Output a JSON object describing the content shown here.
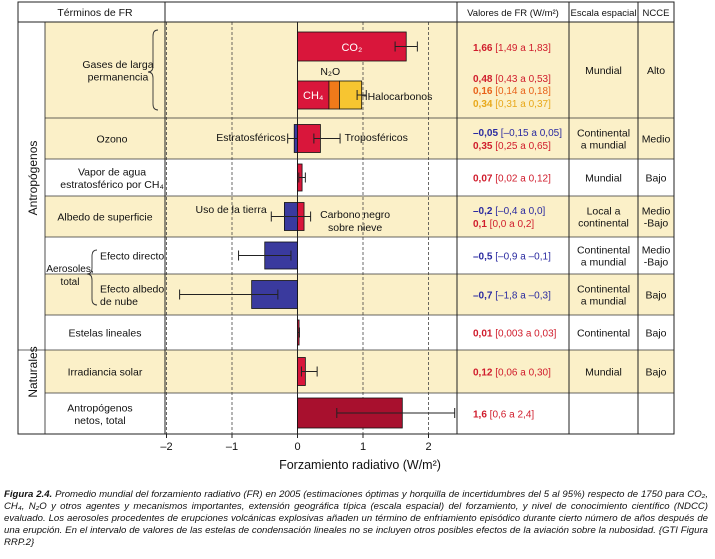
{
  "colors": {
    "red": "#d9163b",
    "blue": "#3a3a9e",
    "darkred": "#a8102e",
    "orange": "#f07a1a",
    "yellow": "#f7c531",
    "band": "#fbf0c8",
    "border": "#222222",
    "valred": "#d01c2c",
    "valblue": "#2a2aa0",
    "valorange": "#e8621a",
    "valyellow": "#e8a81a"
  },
  "chart_data": {
    "type": "bar",
    "orientation": "horizontal",
    "title": "",
    "xlabel": "Forzamiento radiativo (W/m²)",
    "xlim": [
      -2.0,
      2.45
    ],
    "xticks": [
      "–2",
      "–1",
      "0",
      "1",
      "2"
    ],
    "xtick_values": [
      -2,
      -1,
      0,
      1,
      2
    ],
    "headers": {
      "terms": "Términos de FR",
      "values": "Valores de FR (W/m²)",
      "scale": "Escala espacial",
      "ncce": "NCCE"
    },
    "groups": {
      "anthro": "Antropógenos",
      "natural": "Naturales"
    },
    "rows": [
      {
        "term": [
          "Gases de larga",
          "permanencia"
        ],
        "scale": [
          "Mundial"
        ],
        "ncce": [
          "Alto"
        ],
        "shaded": true,
        "values": [
          {
            "best": "1,66",
            "range": "[1,49 a 1,83]",
            "color": "red"
          },
          {
            "best": "0,48",
            "range": "[0,43 a 0,53]",
            "color": "red"
          },
          {
            "best": "0,16",
            "range": "[0,14 a 0,18]",
            "color": "orange"
          },
          {
            "best": "0,34",
            "range": "[0,31 a 0,37]",
            "color": "yellow"
          }
        ]
      },
      {
        "term": [
          "Ozono"
        ],
        "scale": [
          "Continental",
          "a mundial"
        ],
        "ncce": [
          "Medio"
        ],
        "shaded": true,
        "values": [
          {
            "best": "–0,05",
            "range": "[–0,15 a 0,05]",
            "color": "blue"
          },
          {
            "best": "0,35",
            "range": "[0,25 a 0,65]",
            "color": "red"
          }
        ]
      },
      {
        "term": [
          "Vapor de agua",
          "estratosférico por CH₄"
        ],
        "scale": [
          "Mundial"
        ],
        "ncce": [
          "Bajo"
        ],
        "shaded": false,
        "values": [
          {
            "best": "0,07",
            "range": "[0,02 a 0,12]",
            "color": "red"
          }
        ]
      },
      {
        "term": [
          "Albedo de superficie"
        ],
        "scale": [
          "Local a",
          "continental"
        ],
        "ncce": [
          "Medio",
          "-Bajo"
        ],
        "shaded": true,
        "values": [
          {
            "best": "–0,2",
            "range": "[–0,4 a 0,0]",
            "color": "blue"
          },
          {
            "best": "0,1",
            "range": "[0,0 a 0,2]",
            "color": "red"
          }
        ]
      },
      {
        "term": [
          "Efecto directo"
        ],
        "scale": [
          "Continental",
          "a mundial"
        ],
        "ncce": [
          "Medio",
          "-Bajo"
        ],
        "shaded": false,
        "values": [
          {
            "best": "–0,5",
            "range": "[–0,9 a –0,1]",
            "color": "blue"
          }
        ]
      },
      {
        "term": [
          "Efecto albedo",
          "de nube"
        ],
        "scale": [
          "Continental",
          "a mundial"
        ],
        "ncce": [
          "Bajo"
        ],
        "shaded": true,
        "values": [
          {
            "best": "–0,7",
            "range": "[–1,8 a –0,3]",
            "color": "blue"
          }
        ]
      },
      {
        "term": [
          "Estelas lineales"
        ],
        "scale": [
          "Continental"
        ],
        "ncce": [
          "Bajo"
        ],
        "shaded": false,
        "values": [
          {
            "best": "0,01",
            "range": "[0,003 a 0,03]",
            "color": "red"
          }
        ]
      },
      {
        "term": [
          "Irradiancia solar"
        ],
        "scale": [
          "Mundial"
        ],
        "ncce": [
          "Bajo"
        ],
        "shaded": true,
        "values": [
          {
            "best": "0,12",
            "range": "[0,06 a 0,30]",
            "color": "red"
          }
        ]
      },
      {
        "term": [
          "Antropógenos",
          "netos, total"
        ],
        "scale": [],
        "ncce": [],
        "shaded": false,
        "values": [
          {
            "best": "1,6",
            "range": "[0,6 a 2,4]",
            "color": "red"
          }
        ]
      }
    ],
    "aerosol_label": [
      "Aerosoles,",
      "total"
    ],
    "bars": [
      {
        "name": "CO₂",
        "row": 0,
        "seg": "top",
        "start": 0,
        "value": 1.66,
        "lo": 1.49,
        "hi": 1.83,
        "color": "red",
        "label": "CO₂"
      },
      {
        "name": "CH₄",
        "row": 0,
        "seg": "bottom",
        "start": 0,
        "value": 0.48,
        "lo": null,
        "hi": null,
        "color": "red",
        "label": "CH₄"
      },
      {
        "name": "N₂O",
        "row": 0,
        "seg": "bottom",
        "start": 0.48,
        "value": 0.16,
        "lo": null,
        "hi": null,
        "color": "orange",
        "label": "N₂O"
      },
      {
        "name": "Halocarbonos",
        "row": 0,
        "seg": "bottom",
        "start": 0.64,
        "value": 0.34,
        "lo": 0.91,
        "hi": 1.05,
        "color": "yellow",
        "label": "Halocarbonos"
      },
      {
        "name": "Estratosféricos",
        "row": 1,
        "seg": "full",
        "start": 0,
        "value": -0.05,
        "lo": -0.15,
        "hi": 0.05,
        "color": "blue",
        "label": "Estratosféricos"
      },
      {
        "name": "Troposféricos",
        "row": 1,
        "seg": "full",
        "start": 0,
        "value": 0.35,
        "lo": 0.25,
        "hi": 0.65,
        "color": "red",
        "label": "Troposféricos"
      },
      {
        "name": "Vapor de agua",
        "row": 2,
        "seg": "full",
        "start": 0,
        "value": 0.07,
        "lo": 0.02,
        "hi": 0.12,
        "color": "red",
        "label": ""
      },
      {
        "name": "Uso de la tierra",
        "row": 3,
        "seg": "full",
        "start": 0,
        "value": -0.2,
        "lo": -0.4,
        "hi": 0.0,
        "color": "blue",
        "label": "Uso de la tierra"
      },
      {
        "name": "Carbono negro sobre nieve",
        "row": 3,
        "seg": "full",
        "start": 0,
        "value": 0.1,
        "lo": 0.0,
        "hi": 0.2,
        "color": "red",
        "label": "Carbono negro sobre nieve"
      },
      {
        "name": "Efecto directo",
        "row": 4,
        "seg": "full",
        "start": 0,
        "value": -0.5,
        "lo": -0.9,
        "hi": -0.1,
        "color": "blue",
        "label": ""
      },
      {
        "name": "Efecto albedo de nube",
        "row": 5,
        "seg": "full",
        "start": 0,
        "value": -0.7,
        "lo": -1.8,
        "hi": -0.3,
        "color": "blue",
        "label": ""
      },
      {
        "name": "Estelas lineales",
        "row": 6,
        "seg": "full",
        "start": 0,
        "value": 0.01,
        "lo": 0.003,
        "hi": 0.03,
        "color": "red",
        "label": ""
      },
      {
        "name": "Irradiancia solar",
        "row": 7,
        "seg": "full",
        "start": 0,
        "value": 0.12,
        "lo": 0.06,
        "hi": 0.3,
        "color": "red",
        "label": ""
      },
      {
        "name": "Antropógenos netos",
        "row": 8,
        "seg": "full",
        "start": 0,
        "value": 1.6,
        "lo": 0.6,
        "hi": 2.4,
        "color": "darkred",
        "label": ""
      }
    ]
  },
  "caption": {
    "label": "Figura 2.4.",
    "text": " Promedio mundial del forzamiento radiativo (FR) en 2005 (estimaciones óptimas y horquilla de incertidumbres del 5 al 95%) respecto de 1750 para CO₂, CH₄, N₂O y otros agentes y mecanismos importantes, extensión geográfica típica (escala espacial) del forzamiento, y nivel de conocimiento científico (NDCC) evaluado. Los aerosoles procedentes de erupciones volcánicas explosivas añaden un término de enfriamiento episódico durante cierto número de años después de una erupción. En el intervalo de valores de las estelas de condensación lineales no se incluyen otros posibles efectos de la aviación sobre la nubosidad. {GTI Figura RRP.2}"
  }
}
